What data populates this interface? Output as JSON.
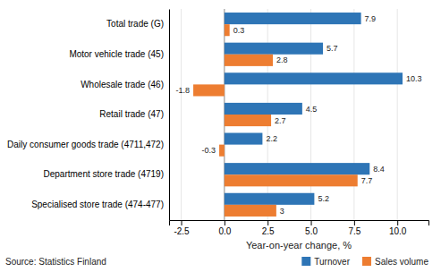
{
  "chart_data": {
    "type": "bar",
    "orientation": "horizontal",
    "categories": [
      "Specialised store trade (474-477)",
      "Department store trade (4719)",
      "Daily consumer goods trade (4711,472)",
      "Retail trade (47)",
      "Wholesale trade (46)",
      "Motor vehicle trade (45)",
      "Total trade (G)"
    ],
    "series": [
      {
        "name": "Turnover",
        "color": "#2E75B6",
        "values": [
          5.2,
          8.4,
          2.2,
          4.5,
          10.3,
          5.7,
          7.9
        ]
      },
      {
        "name": "Sales volume",
        "color": "#ED7D31",
        "values": [
          3.0,
          7.7,
          -0.3,
          2.7,
          -1.8,
          2.8,
          0.3
        ]
      }
    ],
    "xlabel": "Year-on-year change, %",
    "xlim": [
      -3.2,
      11.8
    ],
    "xticks": [
      -2.5,
      {
        "value": 0,
        "label": "0.0"
      },
      2.5,
      {
        "value": 5,
        "label": "5.0"
      },
      7.5,
      {
        "value": 10,
        "label": "10.0"
      }
    ],
    "grid": true,
    "legend": "lower right",
    "data_labels": true,
    "annotations": [
      "Source: Statistics Finland"
    ]
  }
}
